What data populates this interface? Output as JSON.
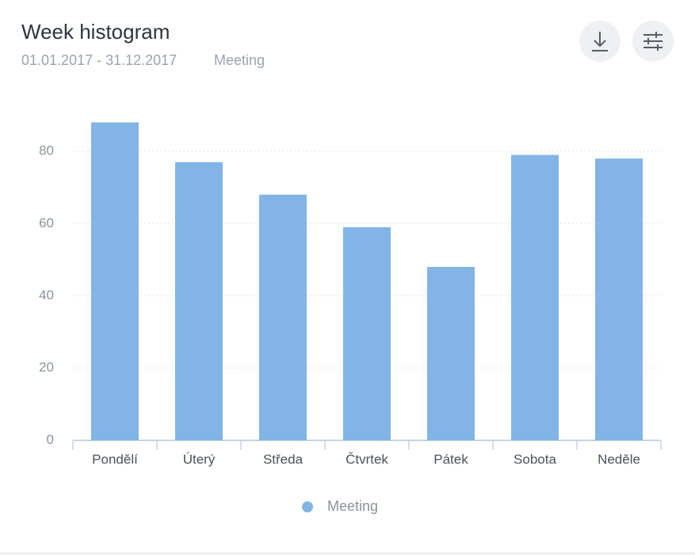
{
  "chart_data": {
    "type": "bar",
    "title": "Week histogram",
    "date_range": "01.01.2017 - 31.12.2017",
    "filter": "Meeting",
    "categories": [
      "Pondělí",
      "Úterý",
      "Středa",
      "Čtvrtek",
      "Pátek",
      "Sobota",
      "Neděle"
    ],
    "series": [
      {
        "name": "Meeting",
        "color": "#82b5e6",
        "values": [
          88,
          77,
          68,
          59,
          48,
          79,
          78
        ]
      }
    ],
    "ylim": [
      0,
      90
    ],
    "yticks": [
      0,
      20,
      40,
      60,
      80
    ],
    "grid": true,
    "legend": "bottom"
  }
}
